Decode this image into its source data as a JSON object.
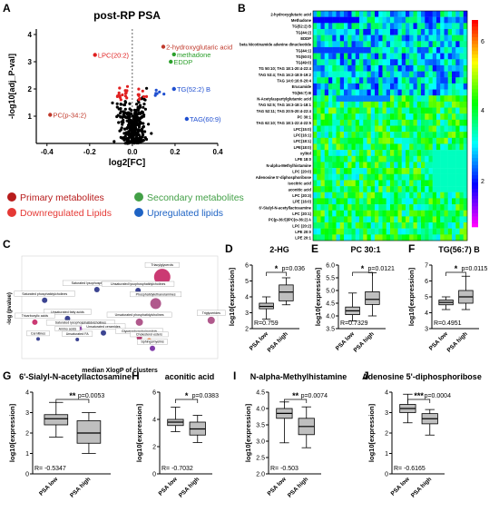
{
  "panels": {
    "A": "A",
    "B": "B",
    "C": "C",
    "D": "D",
    "E": "E",
    "F": "F",
    "G": "G",
    "H": "H",
    "I": "I",
    "J": "J"
  },
  "chart_data": [
    {
      "id": "A",
      "type": "scatter",
      "title": "post-RP PSA",
      "xlabel": "log2[FC]",
      "ylabel": "-log10[adj_P-val]",
      "xlim": [
        -0.45,
        0.4
      ],
      "ylim": [
        0,
        4.2
      ],
      "xticks": [
        "-0.4",
        "-0.2",
        "0.0",
        "0.2",
        "0.4"
      ],
      "yticks": [
        "1",
        "2",
        "3",
        "4"
      ],
      "colors": {
        "background": "#000000",
        "primary": "#c0392b",
        "secondary": "#2ca02c",
        "down": "#e02020",
        "up": "#1f4fd0"
      },
      "annotations": [
        {
          "text": "2-hydroxyglutaric acid",
          "x": 0.15,
          "y": 3.55,
          "color": "#c0392b"
        },
        {
          "text": "methadone",
          "x": 0.2,
          "y": 3.27,
          "color": "#2ca02c"
        },
        {
          "text": "EDDP",
          "x": 0.185,
          "y": 3.0,
          "color": "#2ca02c"
        },
        {
          "text": "LPC(20:2)",
          "x": -0.17,
          "y": 3.25,
          "color": "#e02020"
        },
        {
          "text": "TG(52:2) B",
          "x": 0.2,
          "y": 2.0,
          "color": "#1f4fd0"
        },
        {
          "text": "PC(p-34:2)",
          "x": -0.38,
          "y": 1.05,
          "color": "#c0392b"
        },
        {
          "text": "TAG(60:9)",
          "x": 0.26,
          "y": 0.9,
          "color": "#1f4fd0"
        }
      ]
    },
    {
      "id": "legend",
      "type": "table",
      "entries": [
        {
          "label": "Primary metabolites",
          "color": "#b71c1c"
        },
        {
          "label": "Secondary metabolites",
          "color": "#43a047"
        },
        {
          "label": "Downregulated Lipids",
          "color": "#e53935"
        },
        {
          "label": "Upregulated lipids",
          "color": "#1e63c4"
        }
      ]
    },
    {
      "id": "B",
      "type": "heatmap",
      "rows": [
        "2-hydroxyglutaric acid",
        "Methadone",
        "TG(52:2) B",
        "TG(44:2)",
        "EDDP",
        "beta Nicotinamide adenine dinucleotide",
        "TG(44:1)",
        "TG(50:0)",
        "TG(49:0)",
        "TG 50:10; TAG 18:1-20:4-22:4",
        "TAG 53:4; TAG 16:2-18:0-19:2",
        "TAG 14:0:16:0-20:4",
        "Erucamide",
        "TG(56:7) B",
        "N-Acetylaspartylglutamic acid",
        "TAG 52:5; TAG 16:3-18:1-18:1",
        "TAG 52:11; TAG 20:5-20:4-22:4",
        "PC 30:1",
        "TAG 62:10; TAG 18:1-22:4-22:5",
        "LPC(15:0)",
        "LPC(16:1)",
        "LPC(18:1)",
        "LPE(18:0)",
        "xylitol",
        "LPE 18:0",
        "N-alpha-Methylhistamine",
        "LPC (20:0)",
        "Adenosine 5'-diphosphoribose",
        "isocitric acid",
        "aconitic acid",
        "LPC (20:3)",
        "LPE (16:0)",
        "6'-Sialyl-N-acetyllactosamine",
        "LPC (20:1)",
        "PC(p-36:5)/PC(o-36:2) A",
        "LPC (20:2)",
        "LPE 20:0",
        "LPE 20:1"
      ],
      "colorbar_ticks": [
        "6",
        "4",
        "2"
      ],
      "colormap": [
        "#ff00ff",
        "#0000ff",
        "#00ffff",
        "#00ff00",
        "#ffff00",
        "#ff0000"
      ]
    },
    {
      "id": "C",
      "type": "scatter",
      "xlabel": "median XlogP of clusters",
      "ylabel": "-log (pvalue)",
      "xlim": [
        -5,
        25
      ],
      "ylim": [
        -2,
        20
      ],
      "points": [
        {
          "x": 16.5,
          "y": 15.5,
          "r": 9,
          "color": "#c2185b",
          "label": "Triacylglycerols"
        },
        {
          "x": 6.5,
          "y": 12.8,
          "r": 3,
          "color": "#1a237e",
          "label": "Saturated lysophosphatidylcholines"
        },
        {
          "x": 12.8,
          "y": 12.6,
          "r": 3,
          "color": "#1a237e",
          "label": "Unsaturated lysophosphatidylcholines"
        },
        {
          "x": -1.5,
          "y": 10.5,
          "r": 3,
          "color": "#1a237e",
          "label": "Saturated phosphatidylcholines"
        },
        {
          "x": 15.5,
          "y": 9.8,
          "r": 6,
          "color": "#a23c78",
          "label": "Phosphatidylethanolamines"
        },
        {
          "x": 2.0,
          "y": 6.6,
          "r": 3,
          "color": "#1a237e",
          "label": "Unsaturated fatty acids"
        },
        {
          "x": 13.0,
          "y": 5.8,
          "r": 4,
          "color": "#a23c78",
          "label": "Unsaturated phosphatidylcholines"
        },
        {
          "x": 24.0,
          "y": 6.2,
          "r": 4,
          "color": "#a23c78",
          "label": "Triglycerides"
        },
        {
          "x": -3.0,
          "y": 5.8,
          "r": 3,
          "color": "#c2185b",
          "label": "Tricarboxylic acids"
        },
        {
          "x": 4.0,
          "y": 4.5,
          "r": 2,
          "color": "#7b1fa2",
          "label": "Saturated lysophosphatidylcholines"
        },
        {
          "x": 7.5,
          "y": 3.5,
          "r": 3,
          "color": "#1a237e",
          "label": "Unsaturated ceramides"
        },
        {
          "x": 13.0,
          "y": 2.5,
          "r": 3,
          "color": "#ad1457",
          "label": "Glycerophosphoinositols"
        },
        {
          "x": 2.0,
          "y": 3.2,
          "r": 2,
          "color": "#1a237e",
          "label": "Amino acids"
        },
        {
          "x": -2.5,
          "y": 2.2,
          "r": 2,
          "color": "#1a237e",
          "label": "Carnitines"
        },
        {
          "x": 3.5,
          "y": 2.1,
          "r": 2,
          "color": "#1a237e",
          "label": "Unsaturated FA"
        },
        {
          "x": 14.5,
          "y": 1.8,
          "r": 3,
          "color": "#e65100",
          "label": "Cholesterol esters"
        },
        {
          "x": 15.0,
          "y": 0.2,
          "r": 3,
          "color": "#6a1b9a",
          "label": "Sphingomyelins"
        }
      ]
    },
    {
      "id": "D",
      "type": "box",
      "title": "2-HG",
      "ylabel": "log10[expression]",
      "ylim": [
        2,
        6
      ],
      "yticks": [
        "2",
        "3",
        "4",
        "5",
        "6"
      ],
      "categories": [
        "PSA low",
        "PSA high"
      ],
      "boxes": [
        {
          "min": 2.6,
          "q1": 3.25,
          "median": 3.4,
          "q3": 3.6,
          "max": 4.0
        },
        {
          "min": 3.5,
          "q1": 3.75,
          "median": 4.3,
          "q3": 4.75,
          "max": 5.2
        }
      ],
      "pvalue": "p=0.036",
      "stars": "*",
      "r": "R=0.759"
    },
    {
      "id": "E",
      "type": "box",
      "title": "PC 30:1",
      "ylabel": "log10[expression]",
      "ylim": [
        3.5,
        6.0
      ],
      "yticks": [
        "3.5",
        "4.0",
        "4.5",
        "5.0",
        "5.5",
        "6.0"
      ],
      "categories": [
        "PSA low",
        "PSA high"
      ],
      "boxes": [
        {
          "min": 3.8,
          "q1": 4.05,
          "median": 4.2,
          "q3": 4.35,
          "max": 4.9
        },
        {
          "min": 4.0,
          "q1": 4.45,
          "median": 4.65,
          "q3": 4.95,
          "max": 5.7
        }
      ],
      "pvalue": "p=0.0121",
      "stars": "*",
      "r": "R=0.7329"
    },
    {
      "id": "F",
      "type": "box",
      "title": "TG(56:7) B",
      "ylabel": "log10[expression]",
      "ylim": [
        3,
        7
      ],
      "yticks": [
        "3",
        "4",
        "5",
        "6",
        "7"
      ],
      "categories": [
        "PSA low",
        "PSA high"
      ],
      "boxes": [
        {
          "min": 4.2,
          "q1": 4.5,
          "median": 4.65,
          "q3": 4.8,
          "max": 5.0
        },
        {
          "min": 4.2,
          "q1": 4.6,
          "median": 5.0,
          "q3": 5.4,
          "max": 6.3
        }
      ],
      "pvalue": "p=0.0115",
      "stars": "*",
      "r": "R=0.4951"
    },
    {
      "id": "G",
      "type": "box",
      "title": "6'-Sialyl-N-acetyllactosamine",
      "ylabel": "log10[expression]",
      "ylim": [
        0,
        4
      ],
      "yticks": [
        "0",
        "1",
        "2",
        "3",
        "4"
      ],
      "categories": [
        "PSA low",
        "PSA high"
      ],
      "boxes": [
        {
          "min": 1.8,
          "q1": 2.4,
          "median": 2.7,
          "q3": 2.9,
          "max": 3.5
        },
        {
          "min": 1.0,
          "q1": 1.5,
          "median": 2.0,
          "q3": 2.6,
          "max": 3.0
        }
      ],
      "pvalue": "p=0.0053",
      "stars": "**",
      "r": "R= -0.5347"
    },
    {
      "id": "H",
      "type": "box",
      "title": "aconitic acid",
      "ylabel": "log10[expression]",
      "ylim": [
        0,
        6
      ],
      "yticks": [
        "0",
        "2",
        "4",
        "6"
      ],
      "categories": [
        "PSA low",
        "PSA high"
      ],
      "boxes": [
        {
          "min": 3.1,
          "q1": 3.55,
          "median": 3.8,
          "q3": 4.0,
          "max": 4.9
        },
        {
          "min": 2.3,
          "q1": 2.85,
          "median": 3.3,
          "q3": 3.8,
          "max": 4.3
        }
      ],
      "pvalue": "p=0.0383",
      "stars": "*",
      "r": "R= -0.7032"
    },
    {
      "id": "I",
      "type": "box",
      "title": "N-alpha-Methylhistamine",
      "ylabel": "log10[expression]",
      "ylim": [
        2.0,
        4.5
      ],
      "yticks": [
        "2.0",
        "2.5",
        "3.0",
        "3.5",
        "4.0",
        "4.5"
      ],
      "categories": [
        "PSA low",
        "PSA high"
      ],
      "boxes": [
        {
          "min": 2.95,
          "q1": 3.7,
          "median": 3.85,
          "q3": 4.0,
          "max": 4.2
        },
        {
          "min": 2.8,
          "q1": 3.2,
          "median": 3.45,
          "q3": 3.7,
          "max": 4.05
        }
      ],
      "pvalue": "p=0.0074",
      "stars": "**",
      "r": "R= -0.503"
    },
    {
      "id": "J",
      "type": "box",
      "title": "Adenosine 5'-diphosphoribose",
      "ylabel": "log10[expression]",
      "ylim": [
        0,
        4
      ],
      "yticks": [
        "0",
        "1",
        "2",
        "3",
        "4"
      ],
      "categories": [
        "PSA low",
        "PSA high"
      ],
      "boxes": [
        {
          "min": 2.5,
          "q1": 3.0,
          "median": 3.2,
          "q3": 3.4,
          "max": 3.9
        },
        {
          "min": 1.9,
          "q1": 2.45,
          "median": 2.7,
          "q3": 2.95,
          "max": 3.15
        }
      ],
      "pvalue": "p=0.0004",
      "stars": "***",
      "r": "R= -0.6165"
    }
  ]
}
